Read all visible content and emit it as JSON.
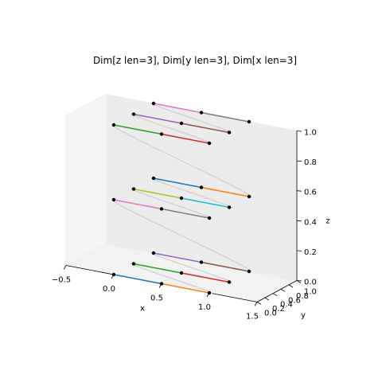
{
  "chart_data": {
    "type": "line",
    "title": "Dim[z len=3], Dim[y len=3], Dim[x len=3]",
    "xlabel": "x",
    "ylabel": "y",
    "zlabel": "z",
    "xlim": [
      -0.5,
      1.5
    ],
    "ylim": [
      0.0,
      1.0
    ],
    "zlim": [
      0.0,
      1.0
    ],
    "x_ticks": [
      "−0.5",
      "0.0",
      "0.5",
      "1.0",
      "1.5"
    ],
    "y_ticks": [
      "0.0",
      "0.2",
      "0.4",
      "0.6",
      "0.8",
      "1.0"
    ],
    "z_ticks": [
      "0.0",
      "0.2",
      "0.4",
      "0.6",
      "0.8",
      "1.0"
    ],
    "grid": false,
    "x": [
      0,
      0.5,
      1
    ],
    "y": [
      0,
      0.5,
      1
    ],
    "z": [
      0,
      0.5,
      1
    ],
    "segment_colors": [
      "#1f77b4",
      "#ff7f0e",
      "#2ca02c",
      "#d62728",
      "#9467bd",
      "#8c564b",
      "#e377c2",
      "#7f7f7f",
      "#bcbd22",
      "#17becf"
    ],
    "connector_color": "#d3d3d3",
    "point_color": "#000000"
  }
}
